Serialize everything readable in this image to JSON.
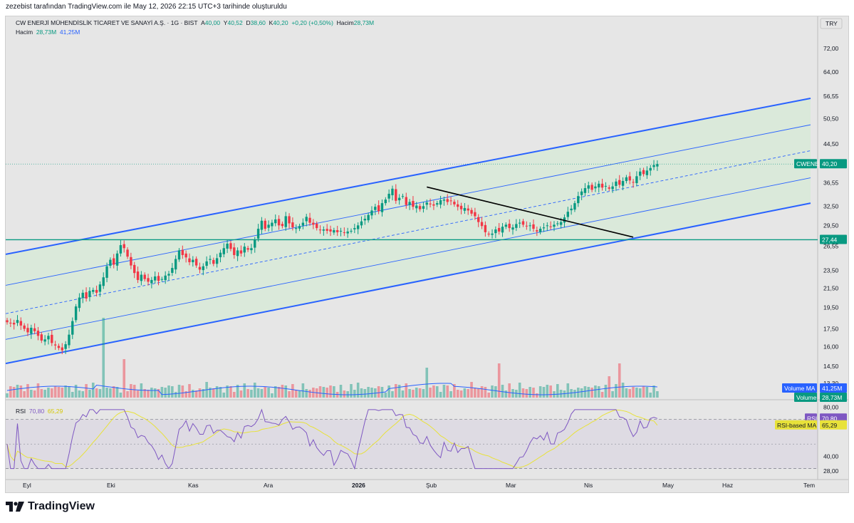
{
  "header": {
    "attribution": "zezebist tarafından TradingView.com ile May 12, 2026 22:15 UTC+3 tarihinde oluşturuldu"
  },
  "legend": {
    "symbol": "CW ENERJİ MÜHENDİSLİK TİCARET VE SANAYİ A.Ş. · 1G · BIST",
    "open_label": "A",
    "open": "40,00",
    "high_label": "Y",
    "high": "40,52",
    "low_label": "D",
    "low": "38,60",
    "close_label": "K",
    "close": "40,20",
    "change": "+0,20 (+0,50%)",
    "volume_label": "Hacim",
    "volume": "28,73M",
    "volume_row_label": "Hacim",
    "volume_row_value": "28,73M",
    "volume_row_ma": "41,25M",
    "rsi_label": "RSI",
    "rsi_value": "70,80",
    "rsi_ma_value": "65,29"
  },
  "currency": "TRY",
  "badges": {
    "symbol_tag": "CWENE",
    "price": "40,20",
    "support": "27,44",
    "volume_ma_label": "Volume MA",
    "volume_ma": "41,25M",
    "volume_label": "Volume",
    "volume": "28,73M",
    "rsi_label": "RSI",
    "rsi": "70,80",
    "rsi_ma_label": "RSI-based MA",
    "rsi_ma": "65,29"
  },
  "colors": {
    "up": "#089981",
    "down": "#f23645",
    "channel": "#2962ff",
    "channel_fill": "#d7ead7",
    "support": "#089981",
    "rsi": "#7e57c2",
    "rsi_ma": "#e8e23a"
  },
  "tradingview_logo": "TradingView",
  "chart_data": {
    "type": "candlestick",
    "price_scale": "log",
    "y_ticks": [
      "72,00",
      "64,00",
      "56,55",
      "50,50",
      "44,50",
      "40,20",
      "36,55",
      "32,50",
      "29,50",
      "26,55",
      "23,50",
      "21,50",
      "19,50",
      "17,50",
      "16,00",
      "14,50",
      "13,30",
      "12,10"
    ],
    "x_ticks": [
      "Eyl",
      "Eki",
      "Kas",
      "Ara",
      "2026",
      "Şub",
      "Mar",
      "Nis",
      "May",
      "Haz",
      "Tem"
    ],
    "last_close": 40.2,
    "horizontal_support": 27.44,
    "regression_channel": {
      "start": "Eyl",
      "upper_start": 25.5,
      "upper_end": 56.0,
      "inner_upper_start": 21.8,
      "inner_upper_end": 49.0,
      "mid_start": 18.9,
      "mid_end": 43.0,
      "inner_lower_start": 16.6,
      "inner_lower_end": 37.5,
      "lower_start": 14.7,
      "lower_end": 33.0
    },
    "downtrend_line": {
      "from_price": 35.8,
      "to_price": 27.8,
      "from_label": "Şub",
      "to_label": "Nis"
    },
    "closes": [
      18.1,
      18.0,
      17.9,
      18.3,
      17.8,
      17.5,
      17.2,
      17.6,
      17.3,
      16.9,
      16.5,
      16.6,
      16.9,
      16.3,
      16.1,
      15.9,
      15.7,
      16.2,
      17.0,
      18.2,
      19.6,
      20.5,
      21.0,
      20.4,
      21.2,
      21.3,
      21.0,
      21.9,
      22.7,
      24.0,
      24.8,
      24.2,
      25.6,
      26.7,
      26.3,
      25.2,
      24.1,
      23.2,
      22.4,
      23.0,
      22.5,
      22.2,
      22.4,
      22.8,
      22.3,
      22.5,
      22.9,
      23.1,
      23.8,
      24.9,
      26.0,
      25.4,
      25.1,
      24.5,
      24.8,
      24.1,
      23.6,
      24.0,
      24.6,
      24.9,
      24.3,
      25.0,
      25.7,
      26.3,
      26.9,
      26.2,
      25.4,
      26.0,
      25.6,
      26.5,
      26.1,
      26.3,
      27.4,
      29.0,
      30.2,
      29.0,
      29.6,
      29.9,
      30.4,
      29.5,
      29.4,
      30.9,
      29.8,
      29.2,
      29.1,
      29.4,
      29.9,
      30.8,
      29.9,
      29.6,
      29.1,
      28.8,
      28.9,
      28.7,
      28.6,
      28.8,
      28.5,
      28.7,
      28.4,
      28.6,
      28.7,
      29.1,
      29.5,
      30.1,
      30.5,
      31.1,
      31.8,
      32.4,
      31.7,
      33.0,
      33.6,
      34.6,
      35.5,
      33.4,
      33.9,
      34.2,
      32.7,
      33.2,
      32.4,
      32.6,
      32.0,
      32.5,
      33.1,
      32.8,
      32.6,
      33.0,
      33.5,
      33.6,
      33.2,
      33.4,
      32.8,
      32.4,
      32.0,
      32.2,
      31.8,
      31.3,
      30.9,
      30.0,
      29.4,
      28.5,
      28.2,
      28.3,
      28.9,
      28.6,
      29.3,
      29.6,
      29.1,
      29.2,
      29.7,
      29.9,
      29.6,
      29.4,
      29.5,
      29.0,
      28.6,
      29.0,
      29.2,
      29.5,
      29.3,
      29.6,
      29.8,
      30.0,
      30.7,
      31.6,
      32.1,
      33.0,
      34.2,
      35.0,
      35.6,
      36.1,
      35.3,
      35.9,
      36.4,
      35.7,
      36.0,
      35.5,
      35.9,
      36.8,
      36.2,
      36.9,
      37.6,
      37.0,
      36.6,
      37.8,
      38.7,
      38.2,
      38.9,
      39.4,
      40.0,
      40.2
    ],
    "volume_ma": "41,25M",
    "last_volume": "28,73M",
    "rsi": {
      "last": 70.8,
      "ma_last": 65.29,
      "levels": [
        70,
        30
      ],
      "ticks": [
        "80,00",
        "40,00",
        "28,00"
      ]
    }
  }
}
